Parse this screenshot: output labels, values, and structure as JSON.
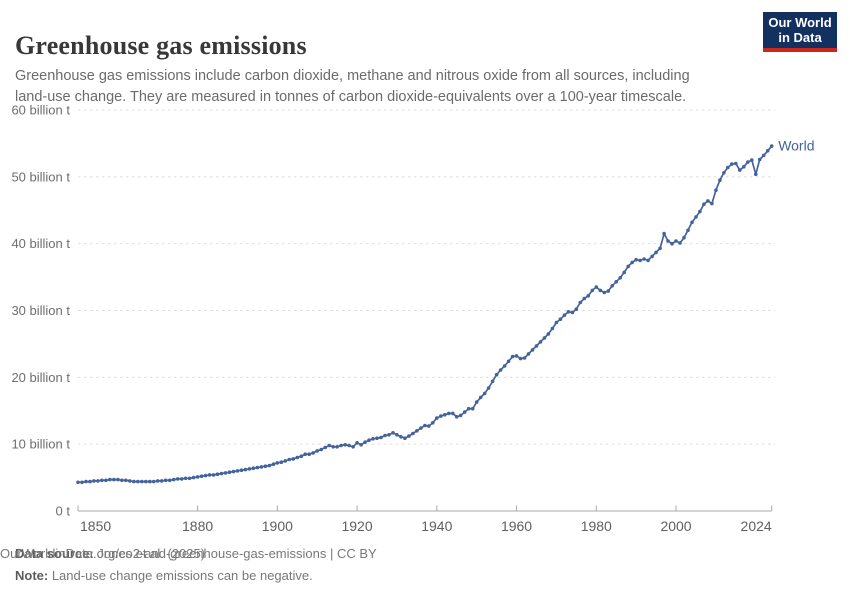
{
  "header": {
    "title": "Greenhouse gas emissions",
    "subtitle": "Greenhouse gas emissions include carbon dioxide, methane and nitrous oxide from all sources, including land-use change. They are measured in tonnes of carbon dioxide-equivalents over a 100-year timescale.",
    "logo": {
      "line1": "Our World",
      "line2": "in Data",
      "bg_color": "#123060",
      "bar_color": "#c8281e"
    }
  },
  "colors": {
    "line": "#44639c",
    "grid": "#dcdcdc",
    "axis": "#a8a8a8",
    "y_tick_text": "#6e6e6e",
    "x_tick_text": "#606060"
  },
  "chart_data": {
    "type": "line",
    "title": "Greenhouse gas emissions",
    "xlabel": "",
    "ylabel": "tonnes of carbon dioxide-equivalents",
    "xlim": [
      1850,
      2024
    ],
    "ylim": [
      0,
      60
    ],
    "grid": "horizontal dashed",
    "legend_position": "end-of-line label",
    "x_ticks": [
      1850,
      1880,
      1900,
      1920,
      1940,
      1960,
      1980,
      2000,
      2024
    ],
    "y_ticks": [
      {
        "value": 0,
        "label": "0 t"
      },
      {
        "value": 10,
        "label": "10 billion t"
      },
      {
        "value": 20,
        "label": "20 billion t"
      },
      {
        "value": 30,
        "label": "30 billion t"
      },
      {
        "value": 40,
        "label": "40 billion t"
      },
      {
        "value": 50,
        "label": "50 billion t"
      },
      {
        "value": 60,
        "label": "60 billion t"
      }
    ],
    "unit": "billion tonnes CO2-equivalents",
    "x_step_years": 1,
    "end_label": "World",
    "series": [
      {
        "name": "World",
        "color": "#44639c",
        "x_start": 1850,
        "values": [
          4.3,
          4.3,
          4.4,
          4.4,
          4.5,
          4.5,
          4.6,
          4.6,
          4.7,
          4.7,
          4.7,
          4.6,
          4.6,
          4.5,
          4.4,
          4.4,
          4.4,
          4.4,
          4.4,
          4.4,
          4.5,
          4.5,
          4.6,
          4.6,
          4.7,
          4.8,
          4.8,
          4.9,
          4.9,
          5.0,
          5.1,
          5.2,
          5.3,
          5.4,
          5.4,
          5.5,
          5.6,
          5.7,
          5.8,
          5.9,
          6.0,
          6.1,
          6.2,
          6.3,
          6.4,
          6.5,
          6.6,
          6.7,
          6.8,
          7.0,
          7.2,
          7.3,
          7.5,
          7.7,
          7.8,
          8.0,
          8.2,
          8.5,
          8.5,
          8.7,
          9.0,
          9.2,
          9.5,
          9.8,
          9.6,
          9.6,
          9.8,
          9.9,
          9.8,
          9.6,
          10.2,
          9.9,
          10.3,
          10.6,
          10.8,
          10.9,
          11.0,
          11.3,
          11.4,
          11.7,
          11.4,
          11.1,
          10.9,
          11.2,
          11.6,
          12.0,
          12.4,
          12.8,
          12.7,
          13.2,
          13.9,
          14.2,
          14.4,
          14.6,
          14.6,
          14.1,
          14.3,
          14.8,
          15.3,
          15.3,
          16.3,
          17.0,
          17.6,
          18.4,
          19.4,
          20.4,
          21.1,
          21.7,
          22.4,
          23.1,
          23.2,
          22.8,
          22.9,
          23.5,
          24.1,
          24.7,
          25.3,
          25.9,
          26.5,
          27.3,
          28.2,
          28.7,
          29.3,
          29.8,
          29.7,
          30.2,
          31.2,
          31.8,
          32.2,
          33.0,
          33.5,
          33.0,
          32.7,
          32.9,
          33.7,
          34.3,
          34.9,
          35.7,
          36.6,
          37.2,
          37.6,
          37.5,
          37.7,
          37.5,
          38.1,
          38.7,
          39.3,
          41.5,
          40.4,
          40.0,
          40.4,
          40.1,
          40.9,
          42.0,
          43.2,
          44.0,
          44.8,
          45.9,
          46.4,
          46.0,
          48.0,
          49.5,
          50.6,
          51.4,
          51.9,
          52.0,
          51.0,
          51.5,
          52.2,
          52.5,
          50.4,
          52.6,
          53.2,
          53.9,
          54.6
        ]
      }
    ]
  },
  "footer": {
    "source_label": "Data source:",
    "source_value": " Jones et al. (2025)",
    "note_label": "Note:",
    "note_value": " Land-use change emissions can be negative.",
    "url_credit": "OurWorldinData.org/co2-and-greenhouse-gas-emissions | CC BY"
  }
}
